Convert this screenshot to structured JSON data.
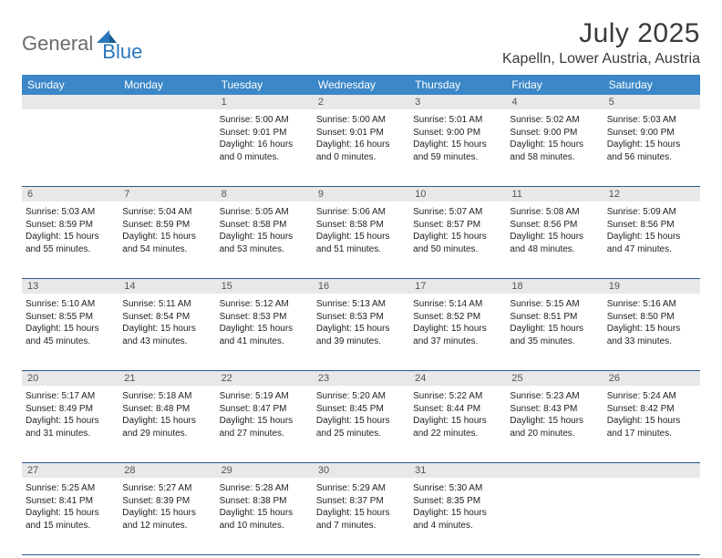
{
  "brand": {
    "part1": "General",
    "part2": "Blue"
  },
  "title": "July 2025",
  "location": "Kapelln, Lower Austria, Austria",
  "colors": {
    "header_bg": "#3b87c8",
    "header_text": "#ffffff",
    "daynum_bg": "#e8e8e8",
    "rule": "#2a5a8a",
    "logo_gray": "#6b6b6b",
    "logo_blue": "#2a77bb"
  },
  "dayNames": [
    "Sunday",
    "Monday",
    "Tuesday",
    "Wednesday",
    "Thursday",
    "Friday",
    "Saturday"
  ],
  "weeks": [
    [
      {
        "n": "",
        "sr": "",
        "ss": "",
        "dl": ""
      },
      {
        "n": "",
        "sr": "",
        "ss": "",
        "dl": ""
      },
      {
        "n": "1",
        "sr": "5:00 AM",
        "ss": "9:01 PM",
        "dl": "16 hours and 0 minutes."
      },
      {
        "n": "2",
        "sr": "5:00 AM",
        "ss": "9:01 PM",
        "dl": "16 hours and 0 minutes."
      },
      {
        "n": "3",
        "sr": "5:01 AM",
        "ss": "9:00 PM",
        "dl": "15 hours and 59 minutes."
      },
      {
        "n": "4",
        "sr": "5:02 AM",
        "ss": "9:00 PM",
        "dl": "15 hours and 58 minutes."
      },
      {
        "n": "5",
        "sr": "5:03 AM",
        "ss": "9:00 PM",
        "dl": "15 hours and 56 minutes."
      }
    ],
    [
      {
        "n": "6",
        "sr": "5:03 AM",
        "ss": "8:59 PM",
        "dl": "15 hours and 55 minutes."
      },
      {
        "n": "7",
        "sr": "5:04 AM",
        "ss": "8:59 PM",
        "dl": "15 hours and 54 minutes."
      },
      {
        "n": "8",
        "sr": "5:05 AM",
        "ss": "8:58 PM",
        "dl": "15 hours and 53 minutes."
      },
      {
        "n": "9",
        "sr": "5:06 AM",
        "ss": "8:58 PM",
        "dl": "15 hours and 51 minutes."
      },
      {
        "n": "10",
        "sr": "5:07 AM",
        "ss": "8:57 PM",
        "dl": "15 hours and 50 minutes."
      },
      {
        "n": "11",
        "sr": "5:08 AM",
        "ss": "8:56 PM",
        "dl": "15 hours and 48 minutes."
      },
      {
        "n": "12",
        "sr": "5:09 AM",
        "ss": "8:56 PM",
        "dl": "15 hours and 47 minutes."
      }
    ],
    [
      {
        "n": "13",
        "sr": "5:10 AM",
        "ss": "8:55 PM",
        "dl": "15 hours and 45 minutes."
      },
      {
        "n": "14",
        "sr": "5:11 AM",
        "ss": "8:54 PM",
        "dl": "15 hours and 43 minutes."
      },
      {
        "n": "15",
        "sr": "5:12 AM",
        "ss": "8:53 PM",
        "dl": "15 hours and 41 minutes."
      },
      {
        "n": "16",
        "sr": "5:13 AM",
        "ss": "8:53 PM",
        "dl": "15 hours and 39 minutes."
      },
      {
        "n": "17",
        "sr": "5:14 AM",
        "ss": "8:52 PM",
        "dl": "15 hours and 37 minutes."
      },
      {
        "n": "18",
        "sr": "5:15 AM",
        "ss": "8:51 PM",
        "dl": "15 hours and 35 minutes."
      },
      {
        "n": "19",
        "sr": "5:16 AM",
        "ss": "8:50 PM",
        "dl": "15 hours and 33 minutes."
      }
    ],
    [
      {
        "n": "20",
        "sr": "5:17 AM",
        "ss": "8:49 PM",
        "dl": "15 hours and 31 minutes."
      },
      {
        "n": "21",
        "sr": "5:18 AM",
        "ss": "8:48 PM",
        "dl": "15 hours and 29 minutes."
      },
      {
        "n": "22",
        "sr": "5:19 AM",
        "ss": "8:47 PM",
        "dl": "15 hours and 27 minutes."
      },
      {
        "n": "23",
        "sr": "5:20 AM",
        "ss": "8:45 PM",
        "dl": "15 hours and 25 minutes."
      },
      {
        "n": "24",
        "sr": "5:22 AM",
        "ss": "8:44 PM",
        "dl": "15 hours and 22 minutes."
      },
      {
        "n": "25",
        "sr": "5:23 AM",
        "ss": "8:43 PM",
        "dl": "15 hours and 20 minutes."
      },
      {
        "n": "26",
        "sr": "5:24 AM",
        "ss": "8:42 PM",
        "dl": "15 hours and 17 minutes."
      }
    ],
    [
      {
        "n": "27",
        "sr": "5:25 AM",
        "ss": "8:41 PM",
        "dl": "15 hours and 15 minutes."
      },
      {
        "n": "28",
        "sr": "5:27 AM",
        "ss": "8:39 PM",
        "dl": "15 hours and 12 minutes."
      },
      {
        "n": "29",
        "sr": "5:28 AM",
        "ss": "8:38 PM",
        "dl": "15 hours and 10 minutes."
      },
      {
        "n": "30",
        "sr": "5:29 AM",
        "ss": "8:37 PM",
        "dl": "15 hours and 7 minutes."
      },
      {
        "n": "31",
        "sr": "5:30 AM",
        "ss": "8:35 PM",
        "dl": "15 hours and 4 minutes."
      },
      {
        "n": "",
        "sr": "",
        "ss": "",
        "dl": ""
      },
      {
        "n": "",
        "sr": "",
        "ss": "",
        "dl": ""
      }
    ]
  ],
  "labels": {
    "sunrise": "Sunrise:",
    "sunset": "Sunset:",
    "daylight": "Daylight:"
  }
}
